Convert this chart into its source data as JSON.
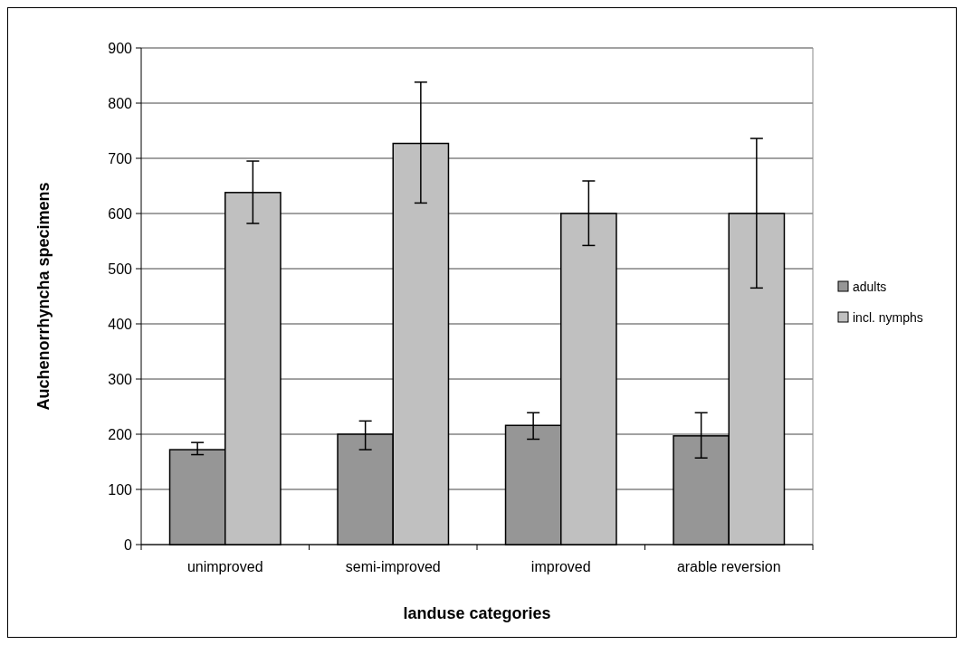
{
  "chart_data": {
    "type": "bar",
    "xlabel": "landuse categories",
    "ylabel": "Auchenorrhyncha specimens",
    "categories": [
      "unimproved",
      "semi-improved",
      "improved",
      "arable reversion"
    ],
    "series": [
      {
        "name": "adults",
        "color": "#969696",
        "values": [
          172,
          200,
          216,
          197
        ],
        "errors": [
          [
            163,
            185
          ],
          [
            172,
            224
          ],
          [
            191,
            239
          ],
          [
            157,
            239
          ]
        ]
      },
      {
        "name": "incl. nymphs",
        "color": "#c0c0c0",
        "values": [
          638,
          727,
          600,
          600
        ],
        "errors": [
          [
            582,
            695
          ],
          [
            619,
            838
          ],
          [
            542,
            659
          ],
          [
            465,
            736
          ]
        ]
      }
    ],
    "ylim": [
      0,
      900
    ],
    "yticks": [
      0,
      100,
      200,
      300,
      400,
      500,
      600,
      700,
      800,
      900
    ],
    "grid": "y",
    "legend": "right"
  }
}
